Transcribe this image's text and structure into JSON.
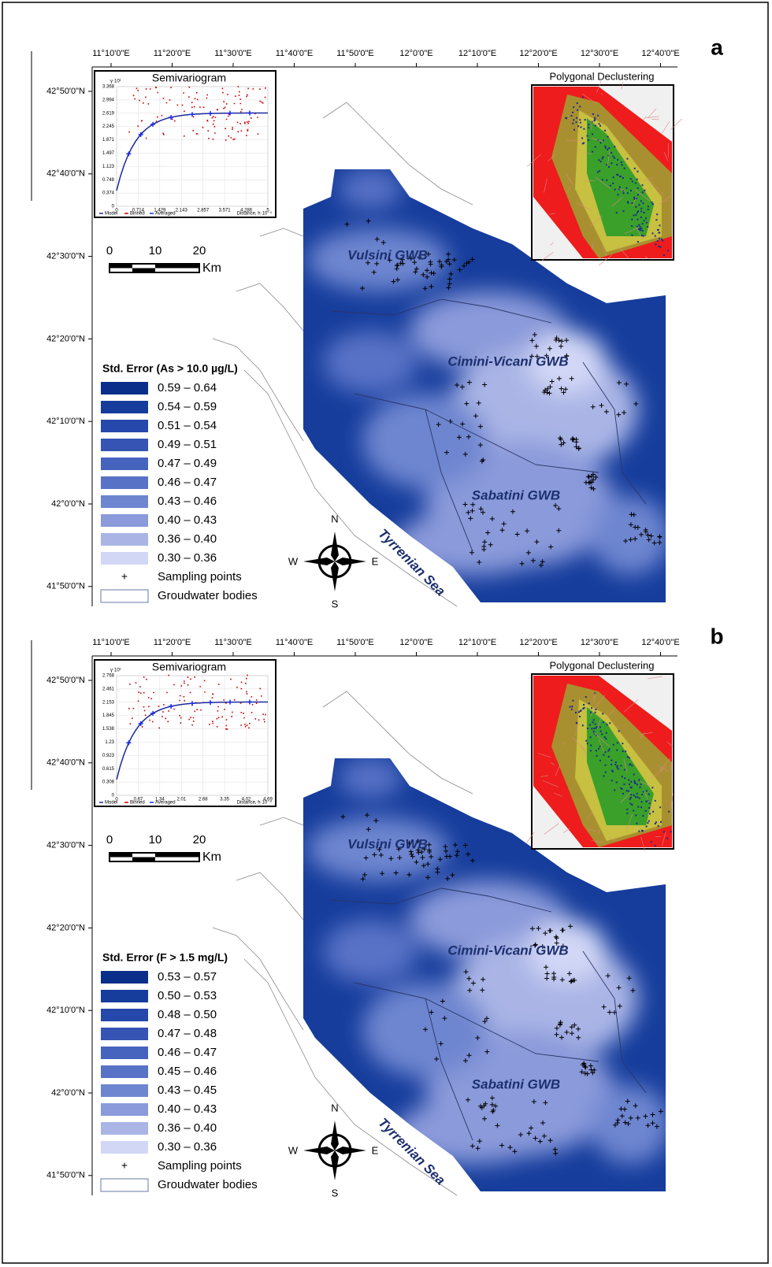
{
  "panels": [
    {
      "label": "a",
      "lon_ticks": [
        "11°10'0\"E",
        "11°20'0\"E",
        "11°30'0\"E",
        "11°40'0\"E",
        "11°50'0\"E",
        "12°0'0\"E",
        "12°10'0\"E",
        "12°20'0\"E",
        "12°30'0\"E",
        "12°40'0\"E"
      ],
      "lat_ticks": [
        "42°50'0\"N",
        "42°40'0\"N",
        "42°30'0\"N",
        "42°20'0\"N",
        "42°10'0\"N",
        "42°0'0\"N",
        "41°50'0\"N"
      ],
      "semivariogram": {
        "title": "Semivariogram",
        "y_unit": "γ·10¹",
        "yticks": [
          "3.368",
          "2.994",
          "2.619",
          "2.245",
          "1.871",
          "1.497",
          "1.123",
          "0.748",
          "0.374",
          "0"
        ],
        "xticks": [
          "0",
          "0.714",
          "1.429",
          "2.143",
          "2.857",
          "3.571",
          "4.286",
          "5"
        ],
        "legend": [
          "Model",
          "Binned",
          "Averaged"
        ],
        "x_label": "Distance, h·10⁻⁴"
      },
      "declustering_title": "Polygonal Declustering",
      "scale": {
        "ticks": [
          "0",
          "10",
          "20"
        ],
        "unit": "Km"
      },
      "legend_title": "Std. Error (As > 10.0 µg/L)",
      "legend_classes": [
        {
          "label": "0.59 – 0.64",
          "color": "#0a2f8a"
        },
        {
          "label": "0.54 – 0.59",
          "color": "#163d9c"
        },
        {
          "label": "0.51 – 0.54",
          "color": "#2548aa"
        },
        {
          "label": "0.49 – 0.51",
          "color": "#3554b4"
        },
        {
          "label": "0.47 – 0.49",
          "color": "#4663be"
        },
        {
          "label": "0.46 – 0.47",
          "color": "#5872c6"
        },
        {
          "label": "0.43 – 0.46",
          "color": "#6e86d0"
        },
        {
          "label": "0.40 – 0.43",
          "color": "#8a9ada"
        },
        {
          "label": "0.36 – 0.40",
          "color": "#aab5e6"
        },
        {
          "label": "0.30 – 0.36",
          "color": "#d2d7f6"
        }
      ],
      "legend_points": "Sampling points",
      "legend_bodies": "Groudwater bodies",
      "regions": [
        "Vulsini GWB",
        "Cimini-Vicani GWB",
        "Sabatini GWB"
      ],
      "sea": "Tyrrenian Sea",
      "compass": [
        "N",
        "S",
        "W",
        "E"
      ]
    },
    {
      "label": "b",
      "lon_ticks": [
        "11°10'0\"E",
        "11°20'0\"E",
        "11°30'0\"E",
        "11°40'0\"E",
        "11°50'0\"E",
        "12°0'0\"E",
        "12°10'0\"E",
        "12°20'0\"E",
        "12°30'0\"E",
        "12°40'0\"E"
      ],
      "lat_ticks": [
        "42°50'0\"N",
        "42°40'0\"N",
        "42°30'0\"N",
        "42°20'0\"N",
        "42°10'0\"N",
        "42°0'0\"N",
        "41°50'0\"N"
      ],
      "semivariogram": {
        "title": "Semivariogram",
        "y_unit": "γ·10¹",
        "yticks": [
          "2.768",
          "2.461",
          "2.153",
          "1.845",
          "1.538",
          "1.23",
          "0.923",
          "0.615",
          "0.308",
          "0"
        ],
        "xticks": [
          "0",
          "0.67",
          "1.34",
          "2.01",
          "2.68",
          "3.35",
          "4.02",
          "4.69"
        ],
        "legend": [
          "Model",
          "Binned",
          "Averaged"
        ],
        "x_label": "Distance, h·10⁻⁴"
      },
      "declustering_title": "Polygonal Declustering",
      "scale": {
        "ticks": [
          "0",
          "10",
          "20"
        ],
        "unit": "Km"
      },
      "legend_title": "Std. Error (F > 1.5 mg/L)",
      "legend_classes": [
        {
          "label": "0.53 – 0.57",
          "color": "#0a2f8a"
        },
        {
          "label": "0.50 – 0.53",
          "color": "#163d9c"
        },
        {
          "label": "0.48 – 0.50",
          "color": "#2548aa"
        },
        {
          "label": "0.47 – 0.48",
          "color": "#3554b4"
        },
        {
          "label": "0.46 – 0.47",
          "color": "#4663be"
        },
        {
          "label": "0.45 – 0.46",
          "color": "#5872c6"
        },
        {
          "label": "0.43 – 0.45",
          "color": "#6e86d0"
        },
        {
          "label": "0.40 – 0.43",
          "color": "#8a9ada"
        },
        {
          "label": "0.36 – 0.40",
          "color": "#aab5e6"
        },
        {
          "label": "0.30 – 0.36",
          "color": "#d2d7f6"
        }
      ],
      "legend_points": "Sampling points",
      "legend_bodies": "Groudwater bodies",
      "regions": [
        "Vulsini GWB",
        "Cimini-Vicani GWB",
        "Sabatini GWB"
      ],
      "sea": "Tyrrenian Sea",
      "compass": [
        "N",
        "S",
        "W",
        "E"
      ]
    }
  ]
}
